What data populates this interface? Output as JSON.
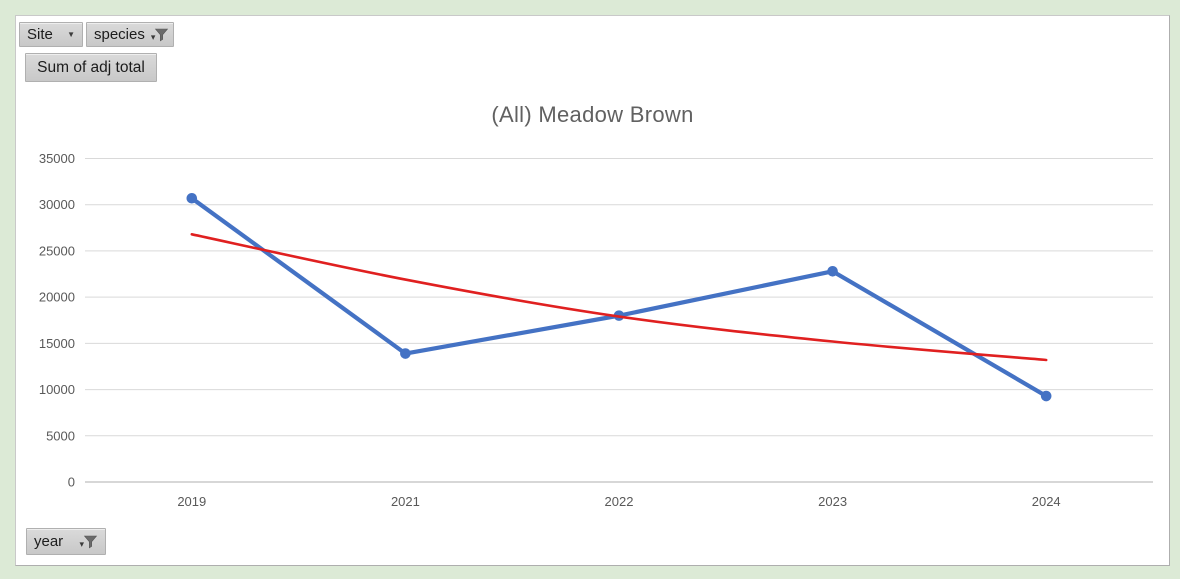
{
  "window": {
    "background_color": "#DCEAD6",
    "chart_background_color": "#FFFFFF"
  },
  "pivot_chart": {
    "field_buttons": {
      "site": {
        "label": "Site"
      },
      "species": {
        "label": "species",
        "filtered": true
      },
      "value": {
        "label": "Sum of adj total"
      },
      "year": {
        "label": "year",
        "filtered": true
      }
    }
  },
  "chart_data": {
    "type": "line",
    "title": "(All) Meadow Brown",
    "categories": [
      "2019",
      "2021",
      "2022",
      "2023",
      "2024"
    ],
    "series": [
      {
        "name": "Sum of adj total",
        "role": "data",
        "color": "#4472C4",
        "marker": "circle",
        "values": [
          30700,
          13900,
          18000,
          22800,
          9300
        ]
      },
      {
        "name": "trendline",
        "role": "trendline",
        "color": "#E02020",
        "values": [
          26800,
          21900,
          17900,
          15200,
          13200
        ]
      }
    ],
    "xlabel": "",
    "ylabel": "",
    "ylim": [
      0,
      35000
    ],
    "ytick_step": 5000,
    "ytick_labels": [
      "0",
      "5000",
      "10000",
      "15000",
      "20000",
      "25000",
      "30000",
      "35000"
    ],
    "grid": true,
    "legend_position": "none"
  },
  "colors": {
    "gridline": "#D9D9D9",
    "axis_line": "#BFBFBF",
    "tick_text": "#595959",
    "title_text": "#616161",
    "button_face": "#D2D2D2",
    "funnel_icon": "#6B6B6B"
  }
}
